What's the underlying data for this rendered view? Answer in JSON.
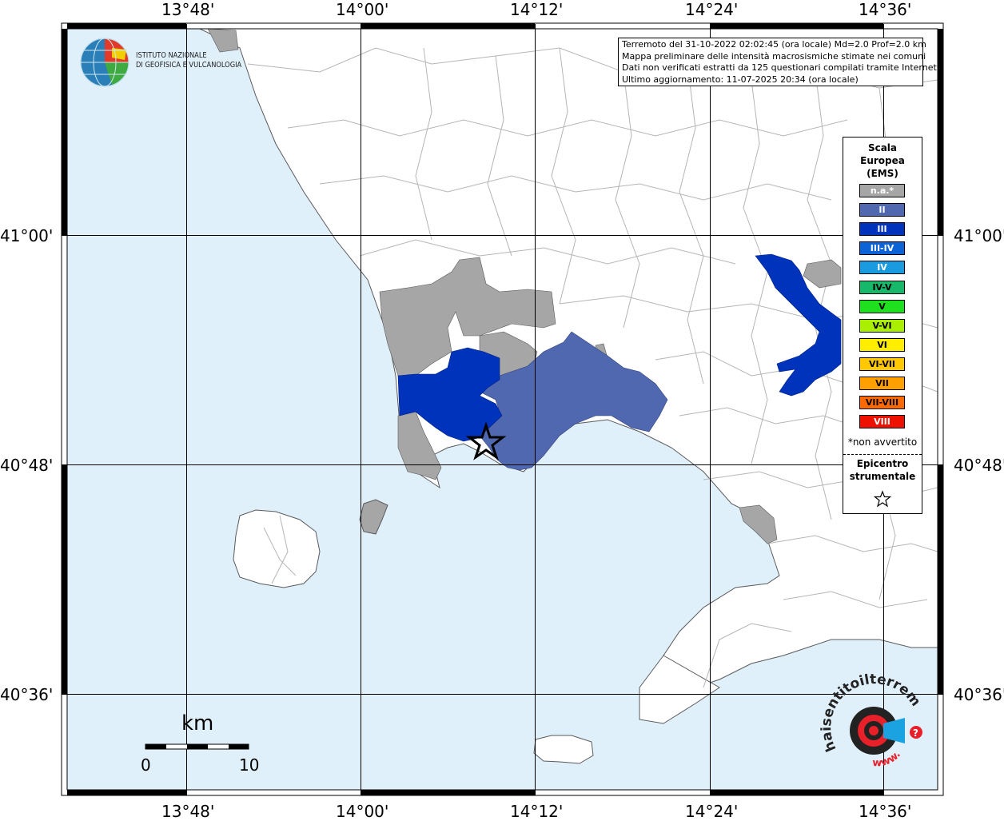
{
  "axes": {
    "lon_labels": [
      "13°48'",
      "14°00'",
      "14°12'",
      "14°24'",
      "14°36'"
    ],
    "lat_labels": [
      "41°00'",
      "40°48'",
      "40°36'"
    ]
  },
  "info": {
    "line1": "Terremoto del 31-10-2022 02:02:45 (ora locale) Md=2.0 Prof=2.0 km",
    "line2": "Mappa preliminare delle intensità macrosismiche stimate nei comuni",
    "line3": "Dati non verificati estratti da 125 questionari compilati tramite Internet.",
    "line4": "Ultimo aggiornamento: 11-07-2025 20:34 (ora locale)"
  },
  "logo": {
    "ingv_line1": "ISTITUTO NAZIONALE",
    "ingv_line2": "DI GEOFISICA E VULCANOLOGIA",
    "hsit_text": "haisentitoilterremoto.it",
    "hsit_www": "www.",
    "hsit_q": "?"
  },
  "legend": {
    "title1": "Scala",
    "title2": "Europea",
    "title3": "(EMS)",
    "classes": [
      {
        "label": "n.a.*",
        "color": "#a6a6a6"
      },
      {
        "label": "II",
        "color": "#5068b0"
      },
      {
        "label": "III",
        "color": "#0033bb"
      },
      {
        "label": "III-IV",
        "color": "#0b63d6"
      },
      {
        "label": "IV",
        "color": "#1a9be0"
      },
      {
        "label": "IV-V",
        "color": "#17b86a"
      },
      {
        "label": "V",
        "color": "#1fe01f"
      },
      {
        "label": "V-VI",
        "color": "#aaee00"
      },
      {
        "label": "VI",
        "color": "#ffee00"
      },
      {
        "label": "VI-VII",
        "color": "#ffc800"
      },
      {
        "label": "VII",
        "color": "#ffa000"
      },
      {
        "label": "VII-VIII",
        "color": "#ff6a00"
      },
      {
        "label": "VIII",
        "color": "#ee1100"
      }
    ],
    "note": "*non avvertito",
    "epicentro1": "Epicentro",
    "epicentro2": "strumentale"
  },
  "scalebar": {
    "title": "km",
    "min": "0",
    "max": "10"
  },
  "colors": {
    "sea": "#e0f0fb",
    "land": "#ffffff",
    "border": "#b5b5b5",
    "coast": "#5a5a5a",
    "grid": "#000000"
  }
}
